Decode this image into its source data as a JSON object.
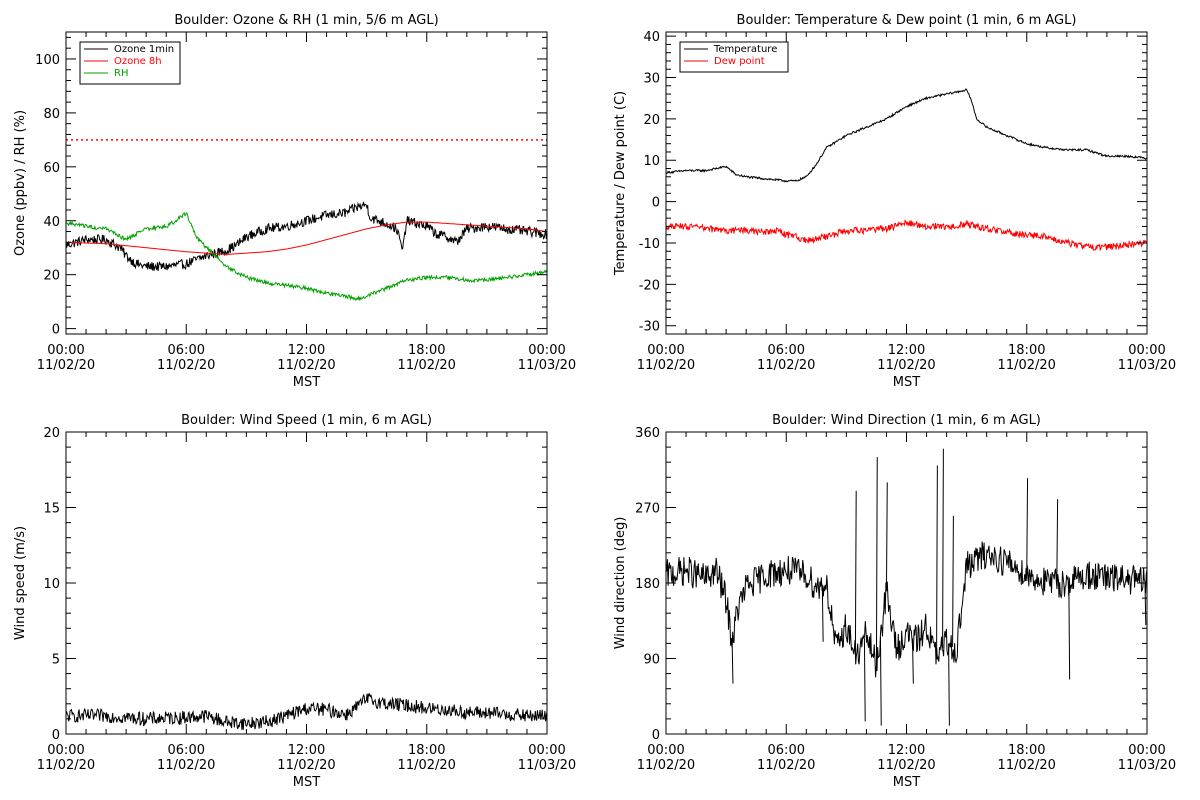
{
  "chart_data": [
    {
      "type": "line",
      "title": "Boulder: Ozone & RH (1 min, 5/6 m AGL)",
      "xlabel": "MST",
      "ylabel": "Ozone (ppbv) / RH (%)",
      "xlim": [
        0,
        24
      ],
      "ylim": [
        -2,
        110
      ],
      "yticks": [
        0,
        20,
        40,
        60,
        80,
        100
      ],
      "xticks": [
        {
          "h": 0,
          "time": "00:00",
          "date": "11/02/20"
        },
        {
          "h": 6,
          "time": "06:00",
          "date": "11/02/20"
        },
        {
          "h": 12,
          "time": "12:00",
          "date": "11/02/20"
        },
        {
          "h": 18,
          "time": "18:00",
          "date": "11/02/20"
        },
        {
          "h": 24,
          "time": "00:00",
          "date": "11/03/20"
        }
      ],
      "legend_position": "top-left",
      "reference_lines": [
        {
          "y": 70,
          "color": "#ff0000",
          "style": "dotted"
        }
      ],
      "series": [
        {
          "name": "Ozone 1min",
          "color": "#000000",
          "noise": 1.8,
          "x": [
            0,
            1,
            2,
            2.7,
            3,
            3.5,
            4,
            5,
            6,
            7,
            7.5,
            8,
            8.5,
            9,
            10,
            11,
            12,
            13,
            14,
            14.5,
            15,
            15.2,
            16,
            16.5,
            16.8,
            17,
            18,
            18.5,
            19,
            19.5,
            20,
            21,
            22,
            23,
            24
          ],
          "y": [
            31,
            33,
            33,
            30,
            27,
            24,
            23,
            23,
            24,
            27,
            28,
            29,
            31,
            34,
            37,
            38,
            40,
            42,
            43,
            45,
            46,
            41,
            39,
            37,
            29,
            40,
            38,
            35,
            34,
            32,
            37,
            38,
            37,
            36,
            35
          ]
        },
        {
          "name": "Ozone 8h",
          "color": "#ff0000",
          "noise": 0,
          "x": [
            0,
            2,
            4,
            6,
            8,
            9,
            10,
            11,
            12,
            13,
            14,
            15,
            16,
            17,
            18,
            19,
            20,
            21,
            22,
            23,
            24
          ],
          "y": [
            32,
            31.5,
            30,
            28.5,
            27.5,
            28,
            28.5,
            29.5,
            31,
            33,
            35,
            37,
            38.5,
            39.5,
            39.5,
            39,
            38.5,
            38,
            37.5,
            37,
            36
          ]
        },
        {
          "name": "RH",
          "color": "#00a000",
          "noise": 0.7,
          "x": [
            0,
            1,
            2,
            2.5,
            3,
            3.5,
            4,
            5,
            5.5,
            6,
            6.5,
            7,
            7.5,
            8,
            8.5,
            9,
            10,
            11,
            12,
            13,
            14,
            14.5,
            15,
            16,
            17,
            18,
            19,
            20,
            21,
            22,
            23,
            24
          ],
          "y": [
            39,
            38,
            37,
            35,
            33,
            35,
            37,
            38,
            40,
            43,
            34,
            30,
            27,
            23,
            21,
            19,
            17,
            16,
            15,
            13,
            12,
            11,
            12,
            15,
            18,
            19,
            19,
            18,
            18,
            19,
            20,
            21
          ]
        }
      ]
    },
    {
      "type": "line",
      "title": "Boulder: Temperature & Dew point (1 min, 6 m AGL)",
      "xlabel": "MST",
      "ylabel": "Temperature / Dew point (C)",
      "xlim": [
        0,
        24
      ],
      "ylim": [
        -32,
        41
      ],
      "yticks": [
        -30,
        -20,
        -10,
        0,
        10,
        20,
        30,
        40
      ],
      "xticks": [
        {
          "h": 0,
          "time": "00:00",
          "date": "11/02/20"
        },
        {
          "h": 6,
          "time": "06:00",
          "date": "11/02/20"
        },
        {
          "h": 12,
          "time": "12:00",
          "date": "11/02/20"
        },
        {
          "h": 18,
          "time": "18:00",
          "date": "11/02/20"
        },
        {
          "h": 24,
          "time": "00:00",
          "date": "11/03/20"
        }
      ],
      "legend_position": "top-left",
      "reference_lines": [],
      "series": [
        {
          "name": "Temperature",
          "color": "#000000",
          "noise": 0.25,
          "x": [
            0,
            1,
            2,
            2.5,
            3,
            3.5,
            4,
            5,
            6,
            6.5,
            7,
            7.5,
            8,
            9,
            10,
            11,
            12,
            13,
            14,
            14.5,
            15,
            15.2,
            15.5,
            16,
            17,
            18,
            19,
            20,
            21,
            22,
            23,
            24
          ],
          "y": [
            7,
            7.5,
            7.5,
            8,
            8.5,
            6.5,
            6,
            5.5,
            5,
            5,
            6,
            9,
            13,
            16,
            18,
            20,
            23,
            25,
            26,
            26.5,
            27,
            25,
            20,
            18,
            16,
            14,
            13,
            12.5,
            12.5,
            11,
            11,
            10.5
          ]
        },
        {
          "name": "Dew point",
          "color": "#ff0000",
          "noise": 0.8,
          "x": [
            0,
            1,
            2,
            3,
            4,
            5,
            5.5,
            6,
            6.5,
            7,
            8,
            9,
            10,
            11,
            12,
            13,
            14,
            15,
            16,
            17,
            18,
            19,
            20,
            21,
            22,
            23,
            24
          ],
          "y": [
            -6,
            -6,
            -6.5,
            -7,
            -7,
            -7.5,
            -7,
            -8,
            -8.5,
            -9.5,
            -8.5,
            -7,
            -7,
            -6.5,
            -5,
            -6,
            -6,
            -5.5,
            -6.5,
            -7.5,
            -8,
            -8.5,
            -10,
            -11,
            -11,
            -10.5,
            -10
          ]
        }
      ]
    },
    {
      "type": "line",
      "title": "Boulder: Wind Speed (1 min, 6 m AGL)",
      "xlabel": "MST",
      "ylabel": "Wind speed (m/s)",
      "xlim": [
        0,
        24
      ],
      "ylim": [
        0,
        20
      ],
      "yticks": [
        0,
        5,
        10,
        15,
        20
      ],
      "xticks": [
        {
          "h": 0,
          "time": "00:00",
          "date": "11/02/20"
        },
        {
          "h": 6,
          "time": "06:00",
          "date": "11/02/20"
        },
        {
          "h": 12,
          "time": "12:00",
          "date": "11/02/20"
        },
        {
          "h": 18,
          "time": "18:00",
          "date": "11/02/20"
        },
        {
          "h": 24,
          "time": "00:00",
          "date": "11/03/20"
        }
      ],
      "legend_position": "none",
      "reference_lines": [],
      "series": [
        {
          "name": "",
          "color": "#000000",
          "noise": 0.45,
          "x": [
            0,
            2,
            4,
            6,
            7,
            8,
            9,
            10,
            11,
            12,
            13,
            14,
            15,
            16,
            17,
            18,
            19,
            20,
            21,
            22,
            23,
            24
          ],
          "y": [
            1.2,
            1.2,
            1,
            1.1,
            1.2,
            0.8,
            0.7,
            0.8,
            1.2,
            1.7,
            1.6,
            1.3,
            2.3,
            2,
            1.9,
            1.7,
            1.6,
            1.4,
            1.4,
            1.3,
            1.2,
            1.2
          ]
        }
      ]
    },
    {
      "type": "line",
      "title": "Boulder: Wind Direction (1 min, 6 m AGL)",
      "xlabel": "MST",
      "ylabel": "Wind direction (deg)",
      "xlim": [
        0,
        24
      ],
      "ylim": [
        0,
        360
      ],
      "yticks": [
        0,
        90,
        180,
        270,
        360
      ],
      "xticks": [
        {
          "h": 0,
          "time": "00:00",
          "date": "11/02/20"
        },
        {
          "h": 6,
          "time": "06:00",
          "date": "11/02/20"
        },
        {
          "h": 12,
          "time": "12:00",
          "date": "11/02/20"
        },
        {
          "h": 18,
          "time": "18:00",
          "date": "11/02/20"
        },
        {
          "h": 24,
          "time": "00:00",
          "date": "11/03/20"
        }
      ],
      "legend_position": "none",
      "reference_lines": [],
      "series": [
        {
          "name": "",
          "color": "#000000",
          "noise": 18,
          "x": [
            0,
            1,
            2,
            2.5,
            3,
            3.3,
            3.6,
            4,
            5,
            6,
            7,
            7.5,
            8,
            8.5,
            9,
            9.5,
            10,
            10.5,
            11,
            11.5,
            12,
            12.5,
            13,
            13.5,
            14,
            14.5,
            15,
            16,
            17,
            18,
            19,
            20,
            21,
            22,
            23,
            24
          ],
          "y": [
            190,
            195,
            185,
            195,
            160,
            110,
            150,
            175,
            190,
            195,
            190,
            175,
            180,
            100,
            130,
            90,
            120,
            80,
            170,
            100,
            120,
            110,
            130,
            90,
            110,
            100,
            200,
            215,
            205,
            190,
            180,
            180,
            190,
            185,
            185,
            180
          ]
        }
      ],
      "spikes": [
        {
          "x": 3.3,
          "y": 60
        },
        {
          "x": 7.8,
          "y": 110
        },
        {
          "x": 9.45,
          "y": 290
        },
        {
          "x": 9.9,
          "y": 15
        },
        {
          "x": 10.5,
          "y": 330
        },
        {
          "x": 10.7,
          "y": 10
        },
        {
          "x": 11.0,
          "y": 300
        },
        {
          "x": 12.3,
          "y": 60
        },
        {
          "x": 13.5,
          "y": 320
        },
        {
          "x": 13.8,
          "y": 340
        },
        {
          "x": 14.1,
          "y": 10
        },
        {
          "x": 14.3,
          "y": 260
        },
        {
          "x": 18.0,
          "y": 305
        },
        {
          "x": 20.1,
          "y": 65
        },
        {
          "x": 19.5,
          "y": 280
        },
        {
          "x": 23.9,
          "y": 130
        }
      ]
    }
  ]
}
